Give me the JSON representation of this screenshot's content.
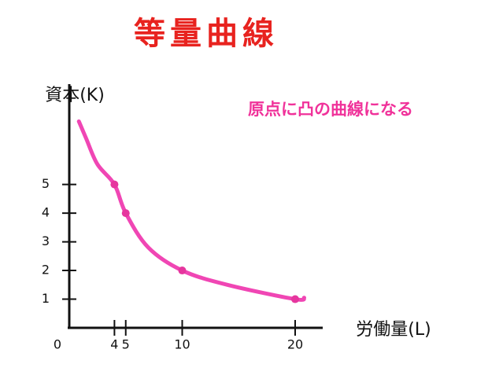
{
  "chart_data": {
    "type": "line",
    "title": "等量曲線",
    "y_label": "資本(K)",
    "x_label": "労働量(L)",
    "annotation": "原点に凸の曲線になる",
    "xlim": [
      0,
      22.3
    ],
    "ylim": [
      0,
      8.5
    ],
    "xticks": [
      0,
      4,
      5,
      10,
      20
    ],
    "yticks": [
      1,
      2,
      3,
      4,
      5
    ],
    "series": [
      {
        "color": "#f046b4",
        "x": [
          0.85,
          1.5,
          2.5,
          4,
          5,
          7,
          10,
          14,
          20,
          20.8
        ],
        "values": [
          7.2,
          6.6,
          5.7,
          5,
          4,
          2.8,
          2,
          1.5,
          1,
          1.05
        ]
      },
      {
        "color": "#e6369e",
        "markers": true,
        "x": [
          4,
          5,
          10,
          20
        ],
        "values": [
          5,
          4,
          2,
          1
        ]
      }
    ],
    "title_color": "#e8231f",
    "annotation_color": "#f0329a"
  }
}
